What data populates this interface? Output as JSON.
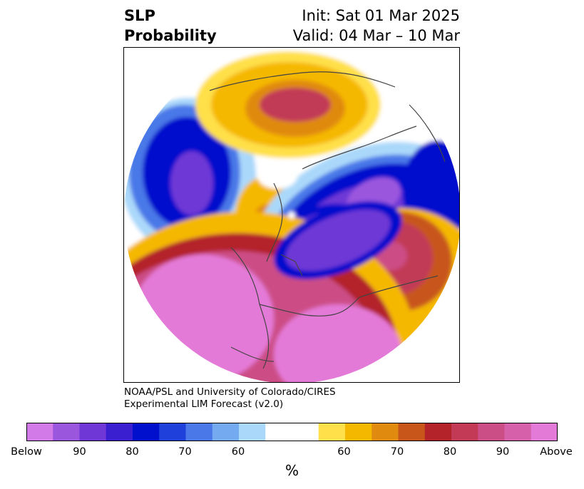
{
  "title": {
    "left_line1": "SLP",
    "left_line2": "Probability",
    "right_line1": "Init: Sat 01 Mar 2025",
    "right_line2": "Valid: 04 Mar – 10 Mar"
  },
  "credit": {
    "line1": "NOAA/PSL and University of Colorado/CIRES",
    "line2": "Experimental LIM Forecast (v2.0)"
  },
  "colorbar": {
    "label": "%",
    "tick_labels": [
      "Below",
      "90",
      "80",
      "70",
      "60",
      "60",
      "70",
      "80",
      "90",
      "Above"
    ],
    "colors": [
      "#d27ae8",
      "#9b56de",
      "#6e37d6",
      "#3a1fd0",
      "#0010cc",
      "#2040dc",
      "#4a78e8",
      "#74aaf0",
      "#aad8fa",
      "#ffffff",
      "#ffe04a",
      "#f5b800",
      "#e08a10",
      "#c8561a",
      "#b4222a",
      "#c23a56",
      "#cc4e86",
      "#d660aa",
      "#e47ad8"
    ]
  }
}
